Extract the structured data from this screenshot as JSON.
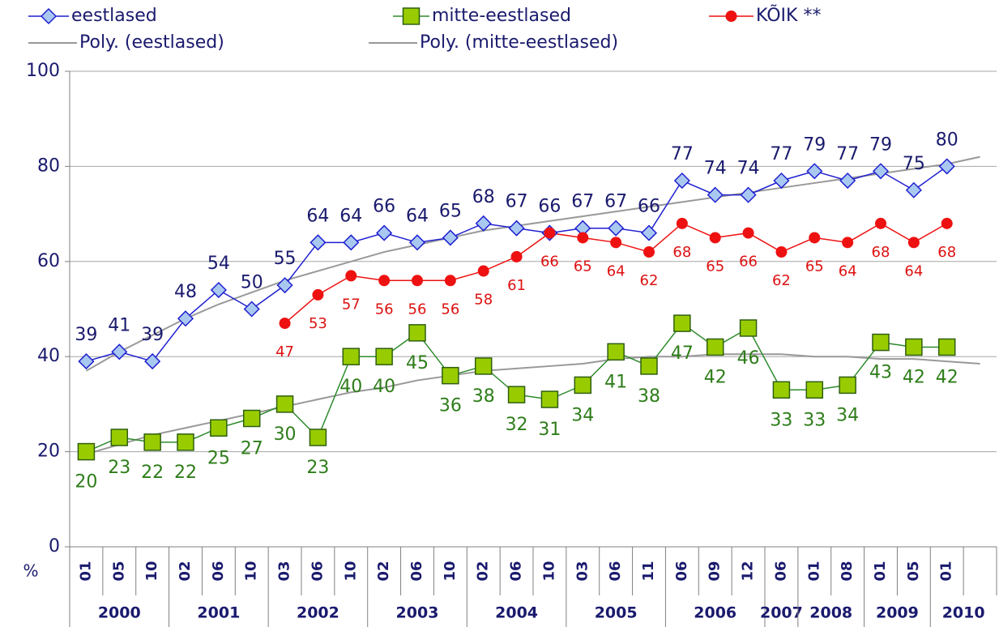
{
  "chart_data": {
    "type": "line",
    "y_unit": "%",
    "categories": [
      "01",
      "05",
      "10",
      "02",
      "06",
      "10",
      "03",
      "06",
      "10",
      "02",
      "06",
      "10",
      "02",
      "06",
      "10",
      "03",
      "06",
      "11",
      "06",
      "09",
      "12",
      "06",
      "01",
      "08",
      "01",
      "05",
      "01",
      null
    ],
    "year_groups": [
      {
        "label": "2000",
        "count": 3
      },
      {
        "label": "2001",
        "count": 3
      },
      {
        "label": "2002",
        "count": 3
      },
      {
        "label": "2003",
        "count": 3
      },
      {
        "label": "2004",
        "count": 3
      },
      {
        "label": "2005",
        "count": 3
      },
      {
        "label": "2006",
        "count": 3
      },
      {
        "label": "2007",
        "count": 1
      },
      {
        "label": "2008",
        "count": 2
      },
      {
        "label": "2009",
        "count": 2
      },
      {
        "label": "2010",
        "count": 2
      }
    ],
    "ylim": [
      0,
      100
    ],
    "yticks": [
      0,
      20,
      40,
      60,
      80,
      100
    ],
    "grid": true,
    "series": [
      {
        "name": "eestlased",
        "color": "#1f1fd0",
        "marker": "diamond",
        "marker_fill": "#a9c8f0",
        "label_color": "#1a1a6e",
        "show_labels": true,
        "values": [
          39,
          41,
          39,
          48,
          54,
          50,
          55,
          64,
          64,
          66,
          64,
          65,
          68,
          67,
          66,
          67,
          67,
          66,
          77,
          74,
          74,
          77,
          79,
          77,
          79,
          75,
          80,
          null
        ]
      },
      {
        "name": "mitte-eestlased",
        "color": "#2e8b2e",
        "marker": "square",
        "marker_fill": "#99cc00",
        "label_color": "#2e7d1a",
        "show_labels": true,
        "values": [
          20,
          23,
          22,
          22,
          25,
          27,
          30,
          23,
          40,
          40,
          45,
          36,
          38,
          32,
          31,
          34,
          41,
          38,
          47,
          42,
          46,
          33,
          33,
          34,
          43,
          42,
          42,
          null
        ]
      },
      {
        "name": "KÕIK **",
        "color": "#ee1111",
        "marker": "circle",
        "marker_fill": "#ee1111",
        "label_color": "#dd1111",
        "show_labels": true,
        "values": [
          null,
          null,
          null,
          null,
          null,
          null,
          47,
          53,
          57,
          56,
          56,
          56,
          58,
          61,
          66,
          65,
          64,
          62,
          68,
          65,
          66,
          62,
          65,
          64,
          68,
          64,
          68,
          null
        ]
      },
      {
        "name": "Poly. (eestlased)",
        "color": "#999999",
        "marker": "none",
        "show_labels": false,
        "values": [
          37,
          41,
          44.5,
          48,
          51,
          53.5,
          56,
          58,
          60,
          62,
          63.5,
          65,
          66.5,
          67.5,
          68.5,
          69.5,
          70.5,
          71.5,
          72.5,
          73.5,
          74.5,
          75.5,
          76.5,
          77.5,
          78.5,
          79.5,
          80.5,
          82
        ]
      },
      {
        "name": "Poly. (mitte-eestlased)",
        "color": "#999999",
        "marker": "none",
        "show_labels": false,
        "values": [
          19.5,
          21.5,
          23.5,
          25,
          26.5,
          28,
          29.5,
          31,
          32.5,
          33.5,
          35,
          36,
          37,
          37.5,
          38,
          38.5,
          39.5,
          40,
          40,
          40.5,
          40.5,
          40.5,
          40,
          40,
          39.5,
          39.5,
          39,
          38.5
        ]
      }
    ]
  }
}
